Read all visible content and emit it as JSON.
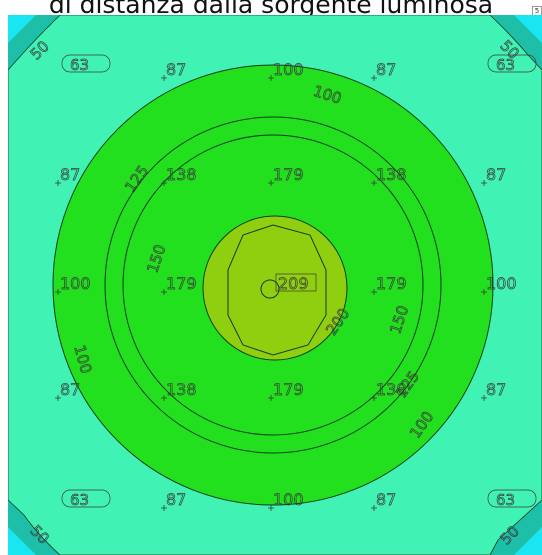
{
  "title": "di distanza dalla sorgente luminosa",
  "corner_mark": "5",
  "colors": {
    "outer": "#1ebfa8",
    "corner": "#19e6f0",
    "band_light": "#40f2b4",
    "band_green": "#22e01e",
    "center": "#8fcf10",
    "contour_line": "#0f3d1e",
    "text": "#3a3a3a"
  },
  "contour_labels": [
    "50",
    "50",
    "50",
    "50",
    "63",
    "63",
    "63",
    "63",
    "100",
    "100",
    "100",
    "150",
    "150",
    "125",
    "125",
    "200"
  ],
  "grid_values": {
    "row1": [
      "87",
      "100",
      "87"
    ],
    "row2": [
      "87",
      "138",
      "179",
      "138",
      "87"
    ],
    "row3": [
      "100",
      "179",
      "209",
      "179",
      "100"
    ],
    "row4": [
      "87",
      "138",
      "179",
      "138",
      "87"
    ],
    "row5": [
      "87",
      "100",
      "87"
    ]
  }
}
